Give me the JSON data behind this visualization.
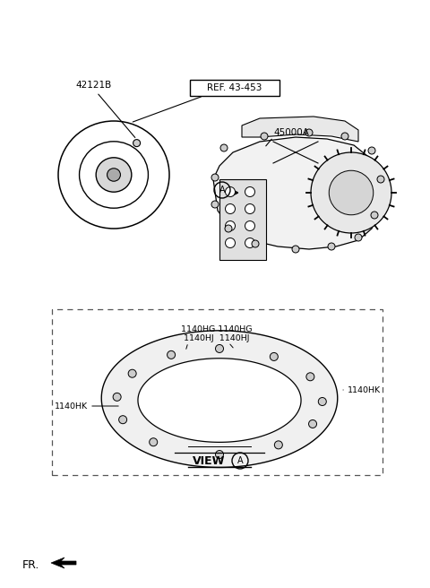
{
  "bg_color": "#ffffff",
  "line_color": "#000000",
  "fig_width": 4.8,
  "fig_height": 6.56,
  "dpi": 100,
  "labels": {
    "part1": "42121B",
    "ref": "REF. 43-453",
    "part2": "45000A",
    "view_label": "VIEW",
    "circle_a": "A",
    "fr_label": "FR.",
    "label_1140hk_left": "1140HK",
    "label_1140hk_right": "1140HK",
    "label_top_row1": "1140HG 1140HG",
    "label_top_row2": "1140HJ  1140HJ"
  }
}
